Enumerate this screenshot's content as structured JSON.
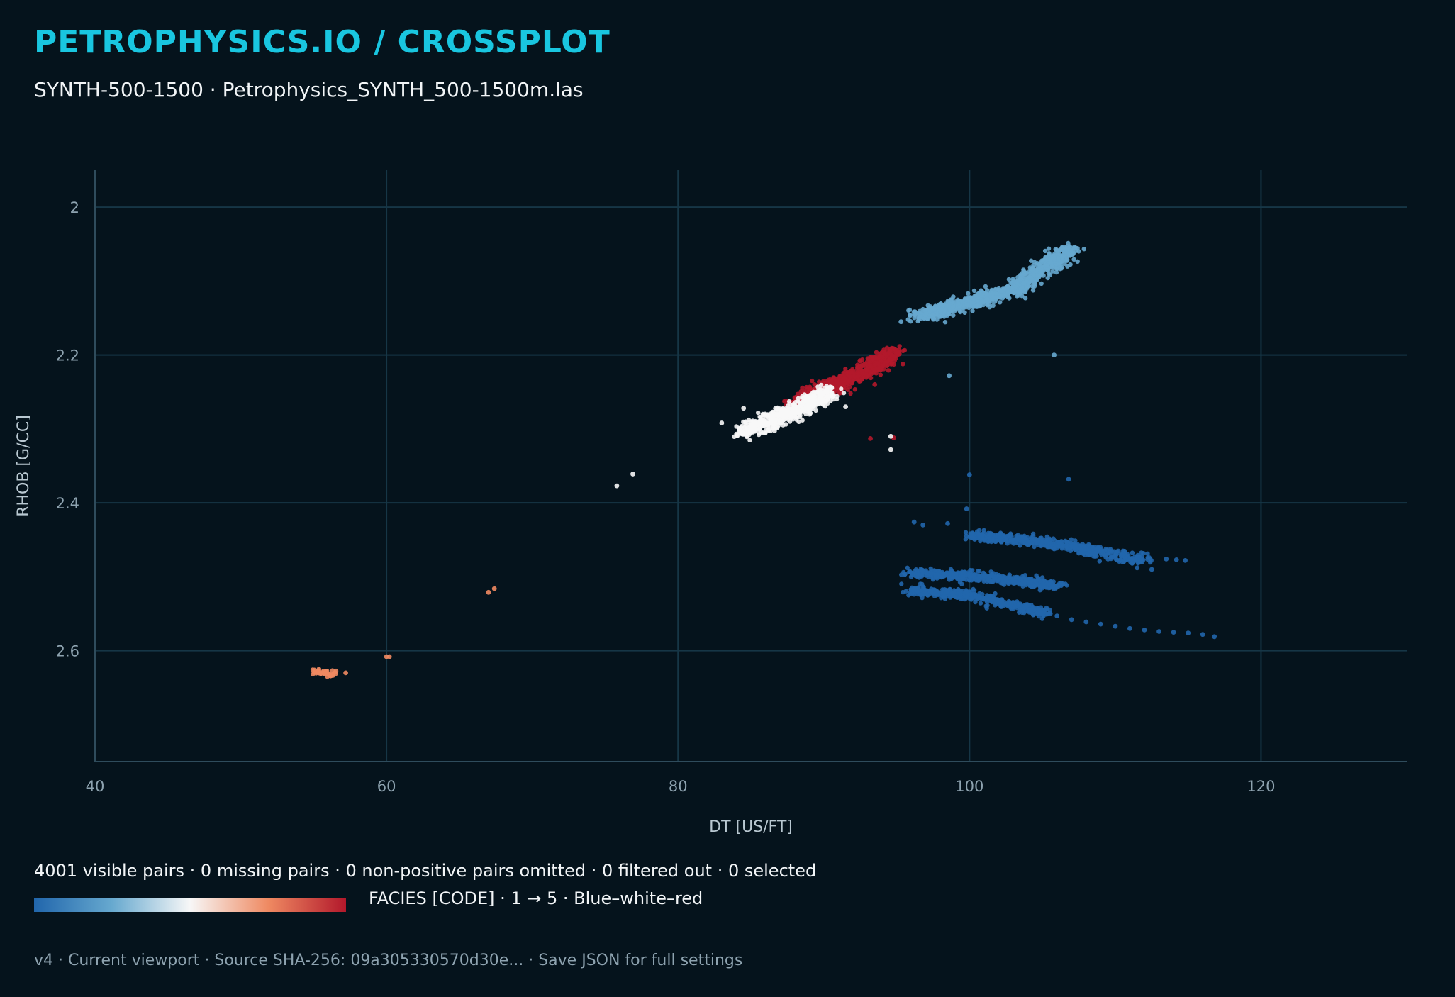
{
  "header": {
    "title": "PETROPHYSICS.IO / CROSSPLOT",
    "subtitle": "SYNTH-500-1500 · Petrophysics_SYNTH_500-1500m.las"
  },
  "stats_line": "4001 visible pairs · 0 missing pairs · 0 non-positive pairs omitted · 0 filtered out · 0 selected",
  "colorbar": {
    "label": "FACIES [CODE] · 1 → 5 · Blue–white–red",
    "min": 1,
    "max": 5,
    "stops": [
      "#2166ac",
      "#67a9cf",
      "#f7f7f7",
      "#ef8a62",
      "#b2182b"
    ]
  },
  "footer": "v4 · Current viewport · Source SHA-256: 09a305330570d30e... · Save JSON for full settings",
  "colors": {
    "background": "#05131c",
    "grid": "#163646",
    "axis": "#2f4c5c",
    "tick_text": "#8ea3b0",
    "title": "#19c6e0"
  },
  "chart_data": {
    "type": "scatter",
    "xlabel": "DT [US/FT]",
    "ylabel": "RHOB [G/CC]",
    "xlim": [
      40,
      130
    ],
    "ylim": [
      1.95,
      2.75
    ],
    "y_inverted": true,
    "xticks": [
      40,
      60,
      80,
      100,
      120
    ],
    "yticks": [
      2.0,
      2.2,
      2.4,
      2.6
    ],
    "xtick_labels": [
      "40",
      "60",
      "80",
      "100",
      "120"
    ],
    "ytick_labels": [
      "2",
      "2.2",
      "2.4",
      "2.6"
    ],
    "grid": true,
    "color_variable": "FACIES",
    "clusters": [
      {
        "facies": 2,
        "line": [
          [
            96.5,
            2.148
          ],
          [
            103,
            2.112
          ],
          [
            107,
            2.055
          ]
        ],
        "count": 900,
        "spread_x": 0.9,
        "spread_y": 0.007
      },
      {
        "facies": 5,
        "line": [
          [
            88,
            2.265
          ],
          [
            91.5,
            2.235
          ],
          [
            95,
            2.196
          ]
        ],
        "count": 700,
        "spread_x": 0.8,
        "spread_y": 0.008
      },
      {
        "facies": 3,
        "line": [
          [
            84.5,
            2.303
          ],
          [
            87.5,
            2.28
          ],
          [
            90.5,
            2.25
          ]
        ],
        "count": 600,
        "spread_x": 0.7,
        "spread_y": 0.009
      },
      {
        "facies": 1,
        "line": [
          [
            100,
            2.444
          ],
          [
            106,
            2.455
          ],
          [
            112,
            2.478
          ]
        ],
        "count": 550,
        "spread_x": 0.8,
        "spread_y": 0.006
      },
      {
        "facies": 1,
        "line": [
          [
            96,
            2.495
          ],
          [
            101,
            2.5
          ],
          [
            106,
            2.512
          ]
        ],
        "count": 500,
        "spread_x": 0.7,
        "spread_y": 0.005
      },
      {
        "facies": 1,
        "line": [
          [
            96,
            2.518
          ],
          [
            100,
            2.525
          ],
          [
            105.5,
            2.55
          ]
        ],
        "count": 450,
        "spread_x": 0.6,
        "spread_y": 0.005
      },
      {
        "facies": 4,
        "line": [
          [
            55,
            2.628
          ],
          [
            56.5,
            2.632
          ]
        ],
        "count": 40,
        "spread_x": 0.4,
        "spread_y": 0.004
      }
    ],
    "points": [
      {
        "x": 107.5,
        "y": 2.468,
        "facies": 1
      },
      {
        "x": 108.5,
        "y": 2.472,
        "facies": 1
      },
      {
        "x": 109.5,
        "y": 2.476,
        "facies": 1
      },
      {
        "x": 110.5,
        "y": 2.48,
        "facies": 1
      },
      {
        "x": 111.5,
        "y": 2.488,
        "facies": 1
      },
      {
        "x": 112.5,
        "y": 2.49,
        "facies": 1
      },
      {
        "x": 113.5,
        "y": 2.476,
        "facies": 1
      },
      {
        "x": 114.2,
        "y": 2.477,
        "facies": 1
      },
      {
        "x": 114.8,
        "y": 2.478,
        "facies": 1
      },
      {
        "x": 106,
        "y": 2.553,
        "facies": 1
      },
      {
        "x": 107,
        "y": 2.558,
        "facies": 1
      },
      {
        "x": 108,
        "y": 2.561,
        "facies": 1
      },
      {
        "x": 109,
        "y": 2.564,
        "facies": 1
      },
      {
        "x": 110,
        "y": 2.567,
        "facies": 1
      },
      {
        "x": 111,
        "y": 2.57,
        "facies": 1
      },
      {
        "x": 112,
        "y": 2.572,
        "facies": 1
      },
      {
        "x": 113,
        "y": 2.574,
        "facies": 1
      },
      {
        "x": 114,
        "y": 2.575,
        "facies": 1
      },
      {
        "x": 115,
        "y": 2.576,
        "facies": 1
      },
      {
        "x": 116,
        "y": 2.578,
        "facies": 1
      },
      {
        "x": 116.8,
        "y": 2.581,
        "facies": 1
      },
      {
        "x": 96.2,
        "y": 2.426,
        "facies": 1
      },
      {
        "x": 96.8,
        "y": 2.43,
        "facies": 1
      },
      {
        "x": 98.5,
        "y": 2.428,
        "facies": 1
      },
      {
        "x": 99.8,
        "y": 2.408,
        "facies": 1
      },
      {
        "x": 100,
        "y": 2.362,
        "facies": 1
      },
      {
        "x": 106.8,
        "y": 2.368,
        "facies": 1
      },
      {
        "x": 105.8,
        "y": 2.2,
        "facies": 2
      },
      {
        "x": 98.6,
        "y": 2.228,
        "facies": 2
      },
      {
        "x": 96.6,
        "y": 2.148,
        "facies": 2
      },
      {
        "x": 95.8,
        "y": 2.152,
        "facies": 2
      },
      {
        "x": 95.3,
        "y": 2.155,
        "facies": 2
      },
      {
        "x": 98,
        "y": 2.148,
        "facies": 2
      },
      {
        "x": 93.2,
        "y": 2.313,
        "facies": 5
      },
      {
        "x": 94.8,
        "y": 2.312,
        "facies": 5
      },
      {
        "x": 93.5,
        "y": 2.24,
        "facies": 5
      },
      {
        "x": 94.6,
        "y": 2.31,
        "facies": 3
      },
      {
        "x": 94.6,
        "y": 2.328,
        "facies": 3
      },
      {
        "x": 91.5,
        "y": 2.27,
        "facies": 3
      },
      {
        "x": 83,
        "y": 2.292,
        "facies": 3
      },
      {
        "x": 84.5,
        "y": 2.272,
        "facies": 3
      },
      {
        "x": 75.8,
        "y": 2.377,
        "facies": 3
      },
      {
        "x": 76.9,
        "y": 2.361,
        "facies": 3
      },
      {
        "x": 67.4,
        "y": 2.516,
        "facies": 4
      },
      {
        "x": 67,
        "y": 2.521,
        "facies": 4
      },
      {
        "x": 60,
        "y": 2.608,
        "facies": 4
      },
      {
        "x": 60.2,
        "y": 2.608,
        "facies": 4
      },
      {
        "x": 57.2,
        "y": 2.63,
        "facies": 4
      }
    ]
  }
}
